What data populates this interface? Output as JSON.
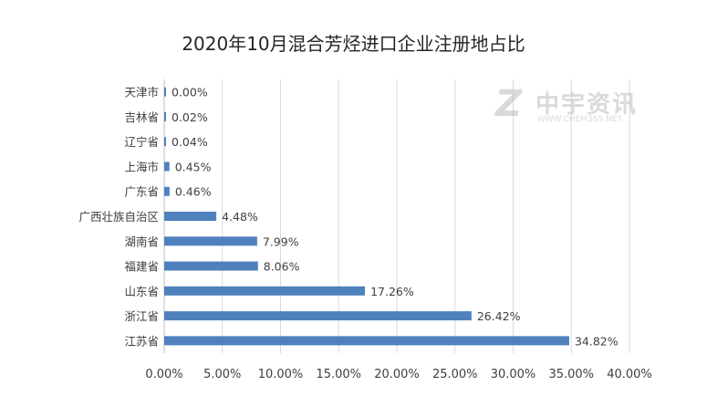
{
  "chart_data": {
    "type": "bar",
    "orientation": "horizontal",
    "title": "2020年10月混合芳烃进口企业注册地占比",
    "categories": [
      "天津市",
      "吉林省",
      "辽宁省",
      "上海市",
      "广东省",
      "广西壮族自治区",
      "湖南省",
      "福建省",
      "山东省",
      "浙江省",
      "江苏省"
    ],
    "values": [
      0.0,
      0.02,
      0.04,
      0.45,
      0.46,
      4.48,
      7.99,
      8.06,
      17.26,
      26.42,
      34.82
    ],
    "data_labels": [
      "0.00%",
      "0.02%",
      "0.04%",
      "0.45%",
      "0.46%",
      "4.48%",
      "7.99%",
      "8.06%",
      "17.26%",
      "26.42%",
      "34.82%"
    ],
    "x_ticks": [
      "0.00%",
      "5.00%",
      "10.00%",
      "15.00%",
      "20.00%",
      "25.00%",
      "30.00%",
      "35.00%",
      "40.00%"
    ],
    "xlim": [
      0,
      40
    ],
    "grid": "vertical",
    "legend": "none",
    "bar_color": "#4f81bd",
    "grid_color": "#d9d9d9"
  },
  "watermark": {
    "brand": "中宇资讯",
    "url": "WWW.CHEM365.NET"
  }
}
